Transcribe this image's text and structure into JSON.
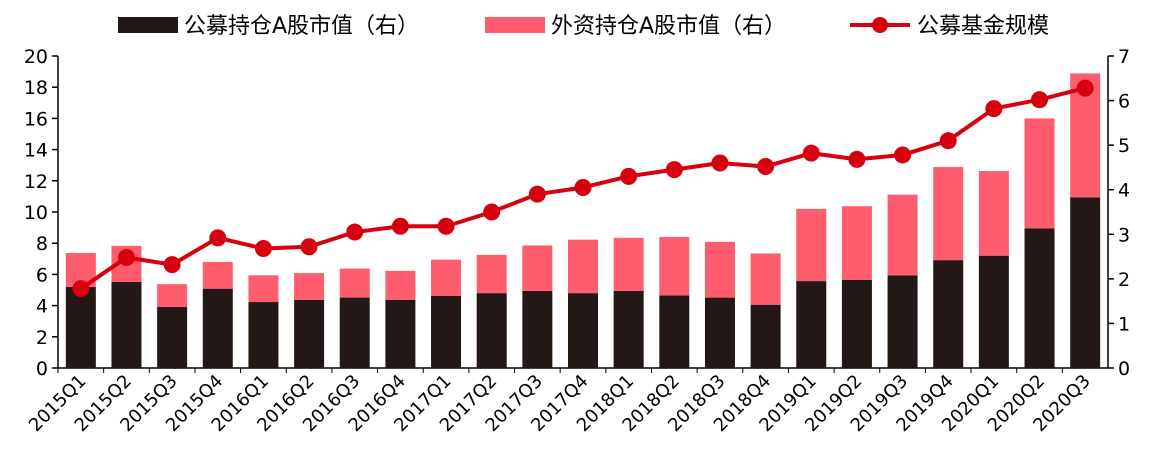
{
  "chart_data": {
    "type": "bar",
    "categories": [
      "2015Q1",
      "2015Q2",
      "2015Q3",
      "2015Q4",
      "2016Q1",
      "2016Q2",
      "2016Q3",
      "2016Q4",
      "2017Q1",
      "2017Q2",
      "2017Q3",
      "2017Q4",
      "2018Q1",
      "2018Q2",
      "2018Q3",
      "2018Q4",
      "2019Q1",
      "2019Q2",
      "2019Q3",
      "2019Q4",
      "2020Q1",
      "2020Q2",
      "2020Q3"
    ],
    "left_axis": {
      "ylim": [
        0,
        20
      ],
      "ticks": [
        "0",
        "2",
        "4",
        "6",
        "8",
        "10",
        "12",
        "14",
        "16",
        "18",
        "20"
      ]
    },
    "right_axis": {
      "ylim": [
        0,
        7
      ],
      "ticks": [
        "0",
        "1",
        "2",
        "3",
        "4",
        "5",
        "6",
        "7"
      ]
    },
    "series": [
      {
        "name": "公募持仓A股市值（右）",
        "kind": "bar",
        "axis": "right",
        "color": "#231815",
        "values": [
          1.82,
          1.93,
          1.37,
          1.78,
          1.48,
          1.53,
          1.58,
          1.53,
          1.62,
          1.68,
          1.73,
          1.68,
          1.73,
          1.63,
          1.58,
          1.42,
          1.95,
          1.98,
          2.08,
          2.42,
          2.52,
          3.13,
          3.83
        ]
      },
      {
        "name": "外资持仓A股市值（右）",
        "kind": "bar",
        "axis": "right",
        "color": "#ff5c6e",
        "values": [
          0.76,
          0.81,
          0.51,
          0.6,
          0.6,
          0.6,
          0.65,
          0.65,
          0.81,
          0.86,
          1.02,
          1.2,
          1.19,
          1.31,
          1.25,
          1.15,
          1.62,
          1.65,
          1.81,
          2.09,
          1.9,
          2.47,
          2.78
        ]
      },
      {
        "name": "公募基金规模",
        "kind": "line",
        "axis": "right",
        "color": "#d7000f",
        "values": [
          1.78,
          2.48,
          2.32,
          2.92,
          2.68,
          2.72,
          3.05,
          3.18,
          3.18,
          3.5,
          3.9,
          4.05,
          4.3,
          4.45,
          4.6,
          4.52,
          4.82,
          4.68,
          4.78,
          5.1,
          5.82,
          6.02,
          6.28
        ]
      }
    ]
  }
}
